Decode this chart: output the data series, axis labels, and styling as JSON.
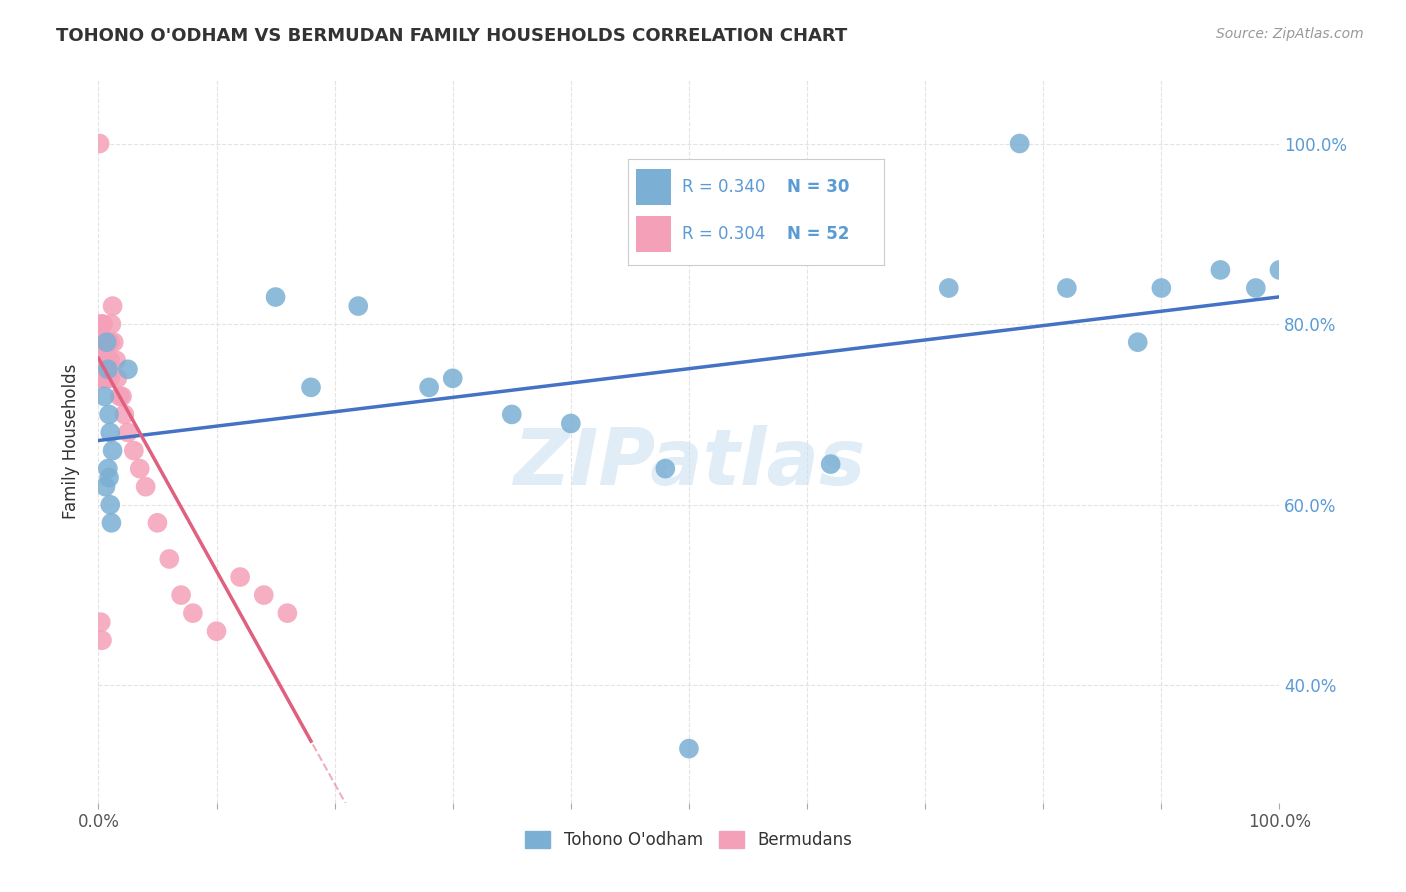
{
  "title": "TOHONO O'ODHAM VS BERMUDAN FAMILY HOUSEHOLDS CORRELATION CHART",
  "source": "Source: ZipAtlas.com",
  "ylabel": "Family Households",
  "xlim": [
    0.0,
    1.0
  ],
  "ylim": [
    0.27,
    1.07
  ],
  "watermark": "ZIPatlas",
  "tohono_color": "#7bafd4",
  "bermuda_color": "#f4a0b8",
  "trend_blue": "#4472c4",
  "trend_pink": "#e06080",
  "background_color": "#ffffff",
  "grid_color": "#e0e0e0",
  "tohono_x": [
    0.005,
    0.007,
    0.008,
    0.009,
    0.01,
    0.008,
    0.006,
    0.009,
    0.01,
    0.011,
    0.012,
    0.025,
    0.15,
    0.22,
    0.35,
    0.48,
    0.5,
    0.62,
    0.72,
    0.78,
    0.82,
    0.88,
    0.9,
    0.95,
    0.98,
    1.0,
    0.18,
    0.3,
    0.4,
    0.28
  ],
  "tohono_y": [
    0.72,
    0.78,
    0.75,
    0.7,
    0.68,
    0.64,
    0.62,
    0.63,
    0.6,
    0.58,
    0.66,
    0.75,
    0.83,
    0.82,
    0.7,
    0.64,
    0.33,
    0.645,
    0.84,
    1.0,
    0.84,
    0.78,
    0.84,
    0.86,
    0.84,
    0.86,
    0.73,
    0.74,
    0.69,
    0.73
  ],
  "bermuda_x": [
    0.001,
    0.001,
    0.002,
    0.002,
    0.002,
    0.003,
    0.003,
    0.003,
    0.003,
    0.004,
    0.004,
    0.004,
    0.004,
    0.005,
    0.005,
    0.005,
    0.006,
    0.006,
    0.006,
    0.007,
    0.007,
    0.007,
    0.008,
    0.008,
    0.008,
    0.009,
    0.009,
    0.01,
    0.01,
    0.01,
    0.011,
    0.012,
    0.013,
    0.015,
    0.016,
    0.018,
    0.02,
    0.022,
    0.025,
    0.03,
    0.035,
    0.04,
    0.05,
    0.06,
    0.07,
    0.08,
    0.1,
    0.12,
    0.14,
    0.16,
    0.002,
    0.003
  ],
  "bermuda_y": [
    1.0,
    0.8,
    0.78,
    0.76,
    0.74,
    0.8,
    0.78,
    0.76,
    0.74,
    0.8,
    0.78,
    0.76,
    0.74,
    0.78,
    0.76,
    0.74,
    0.78,
    0.76,
    0.74,
    0.78,
    0.76,
    0.74,
    0.78,
    0.76,
    0.74,
    0.78,
    0.76,
    0.78,
    0.76,
    0.74,
    0.8,
    0.82,
    0.78,
    0.76,
    0.74,
    0.72,
    0.72,
    0.7,
    0.68,
    0.66,
    0.64,
    0.62,
    0.58,
    0.54,
    0.5,
    0.48,
    0.46,
    0.52,
    0.5,
    0.48,
    0.47,
    0.45
  ],
  "legend_r1": "R = 0.340",
  "legend_n1": "N = 30",
  "legend_r2": "R = 0.304",
  "legend_n2": "N = 52",
  "legend_color_text": "#5b9bd5",
  "label1": "Tohono O'odham",
  "label2": "Bermudans"
}
